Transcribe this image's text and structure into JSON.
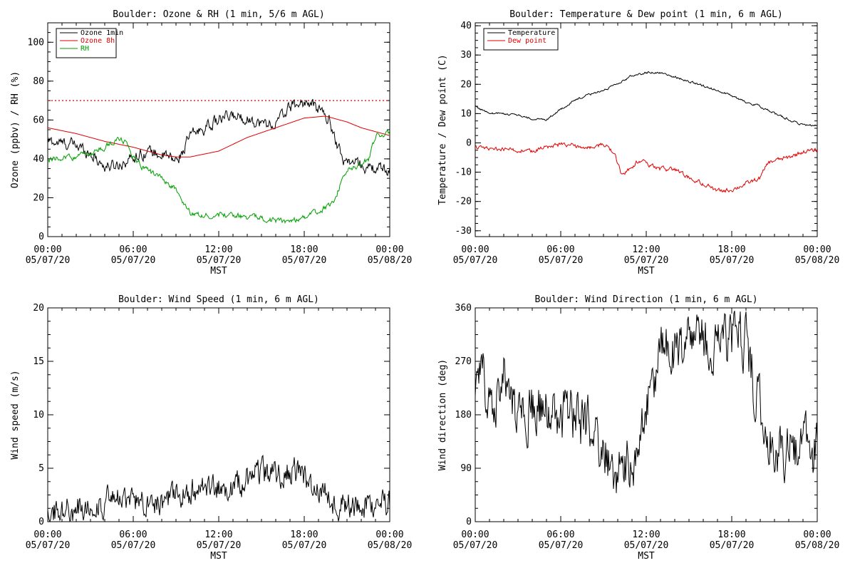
{
  "colors": {
    "black": "#000000",
    "red": "#e00000",
    "green": "#00a000",
    "background": "#ffffff"
  },
  "time_axis": {
    "ticks": [
      {
        "time": "00:00",
        "date": "05/07/20"
      },
      {
        "time": "06:00",
        "date": "05/07/20"
      },
      {
        "time": "12:00",
        "date": "05/07/20"
      },
      {
        "time": "18:00",
        "date": "05/07/20"
      },
      {
        "time": "00:00",
        "date": "05/08/20"
      }
    ],
    "label": "MST"
  },
  "chart_data": [
    {
      "type": "line",
      "title": "Boulder: Ozone & RH (1 min, 5/6 m AGL)",
      "xlabel": "MST",
      "ylabel": "Ozone (ppbv) / RH (%)",
      "xlim": [
        "05/07/20 00:00",
        "05/08/20 00:00"
      ],
      "ylim": [
        0,
        110
      ],
      "yticks": [
        0,
        20,
        40,
        60,
        80,
        100
      ],
      "legend_position": "top-left",
      "grid": false,
      "reference_line": {
        "y": 70,
        "color": "#e00000",
        "style": "dotted"
      },
      "series": [
        {
          "name": "Ozone 1min",
          "color": "#000000",
          "noise": 2.5,
          "values": [
            [
              "05/07/20 00:00",
              49
            ],
            [
              "05/07/20 01:00",
              48
            ],
            [
              "05/07/20 02:00",
              47
            ],
            [
              "05/07/20 03:00",
              43
            ],
            [
              "05/07/20 04:00",
              36
            ],
            [
              "05/07/20 05:00",
              37
            ],
            [
              "05/07/20 06:00",
              41
            ],
            [
              "05/07/20 07:00",
              44
            ],
            [
              "05/07/20 08:00",
              42
            ],
            [
              "05/07/20 09:00",
              39
            ],
            [
              "05/07/20 09:30",
              44
            ],
            [
              "05/07/20 10:00",
              52
            ],
            [
              "05/07/20 11:00",
              56
            ],
            [
              "05/07/20 12:00",
              60
            ],
            [
              "05/07/20 13:00",
              62
            ],
            [
              "05/07/20 14:00",
              61
            ],
            [
              "05/07/20 15:00",
              58
            ],
            [
              "05/07/20 16:00",
              58
            ],
            [
              "05/07/20 17:00",
              67
            ],
            [
              "05/07/20 18:00",
              69
            ],
            [
              "05/07/20 19:00",
              66
            ],
            [
              "05/07/20 19:45",
              60
            ],
            [
              "05/07/20 20:15",
              49
            ],
            [
              "05/07/20 20:40",
              40
            ],
            [
              "05/07/20 21:00",
              39
            ],
            [
              "05/07/20 22:00",
              37
            ],
            [
              "05/07/20 22:30",
              35
            ],
            [
              "05/07/20 23:00",
              35
            ],
            [
              "05/08/20 00:00",
              34
            ]
          ]
        },
        {
          "name": "Ozone 8h",
          "color": "#e00000",
          "noise": 0,
          "values": [
            [
              "05/07/20 00:00",
              56
            ],
            [
              "05/07/20 02:00",
              53
            ],
            [
              "05/07/20 04:00",
              49
            ],
            [
              "05/07/20 06:00",
              46
            ],
            [
              "05/07/20 08:00",
              42
            ],
            [
              "05/07/20 09:00",
              41
            ],
            [
              "05/07/20 10:00",
              41
            ],
            [
              "05/07/20 12:00",
              44
            ],
            [
              "05/07/20 14:00",
              51
            ],
            [
              "05/07/20 16:00",
              56
            ],
            [
              "05/07/20 18:00",
              61
            ],
            [
              "05/07/20 19:30",
              62
            ],
            [
              "05/07/20 21:00",
              59
            ],
            [
              "05/07/20 22:00",
              56
            ],
            [
              "05/07/20 23:00",
              54
            ],
            [
              "05/08/20 00:00",
              52
            ]
          ]
        },
        {
          "name": "RH",
          "color": "#00a000",
          "noise": 1.2,
          "values": [
            [
              "05/07/20 00:00",
              39
            ],
            [
              "05/07/20 01:00",
              41
            ],
            [
              "05/07/20 02:00",
              41
            ],
            [
              "05/07/20 03:00",
              43
            ],
            [
              "05/07/20 04:00",
              46
            ],
            [
              "05/07/20 05:00",
              50
            ],
            [
              "05/07/20 05:30",
              49
            ],
            [
              "05/07/20 06:00",
              40
            ],
            [
              "05/07/20 07:00",
              34
            ],
            [
              "05/07/20 08:00",
              30
            ],
            [
              "05/07/20 09:00",
              24
            ],
            [
              "05/07/20 10:00",
              12
            ],
            [
              "05/07/20 11:00",
              11
            ],
            [
              "05/07/20 12:00",
              11
            ],
            [
              "05/07/20 13:00",
              11
            ],
            [
              "05/07/20 14:00",
              10
            ],
            [
              "05/07/20 15:00",
              10
            ],
            [
              "05/07/20 16:00",
              8
            ],
            [
              "05/07/20 17:00",
              8
            ],
            [
              "05/07/20 18:00",
              10
            ],
            [
              "05/07/20 19:00",
              13
            ],
            [
              "05/07/20 20:00",
              17
            ],
            [
              "05/07/20 20:30",
              26
            ],
            [
              "05/07/20 21:00",
              34
            ],
            [
              "05/07/20 22:00",
              37
            ],
            [
              "05/07/20 22:30",
              40
            ],
            [
              "05/07/20 23:00",
              52
            ],
            [
              "05/08/20 00:00",
              53
            ]
          ]
        }
      ]
    },
    {
      "type": "line",
      "title": "Boulder: Temperature & Dew point (1 min, 6 m AGL)",
      "xlabel": "MST",
      "ylabel": "Temperature / Dew point (C)",
      "xlim": [
        "05/07/20 00:00",
        "05/08/20 00:00"
      ],
      "ylim": [
        -32,
        41
      ],
      "yticks": [
        -30,
        -20,
        -10,
        0,
        10,
        20,
        30,
        40
      ],
      "legend_position": "top-left",
      "grid": false,
      "series": [
        {
          "name": "Temperature",
          "color": "#000000",
          "noise": 0.3,
          "values": [
            [
              "05/07/20 00:00",
              12.5
            ],
            [
              "05/07/20 01:00",
              10
            ],
            [
              "05/07/20 02:00",
              10
            ],
            [
              "05/07/20 03:00",
              9.5
            ],
            [
              "05/07/20 04:00",
              8
            ],
            [
              "05/07/20 05:00",
              8
            ],
            [
              "05/07/20 06:00",
              11.5
            ],
            [
              "05/07/20 07:00",
              14.5
            ],
            [
              "05/07/20 08:00",
              16.5
            ],
            [
              "05/07/20 09:00",
              18
            ],
            [
              "05/07/20 10:00",
              20
            ],
            [
              "05/07/20 11:00",
              23
            ],
            [
              "05/07/20 12:00",
              24
            ],
            [
              "05/07/20 13:00",
              24
            ],
            [
              "05/07/20 14:00",
              22.5
            ],
            [
              "05/07/20 15:00",
              21
            ],
            [
              "05/07/20 16:00",
              19.5
            ],
            [
              "05/07/20 17:00",
              18
            ],
            [
              "05/07/20 18:00",
              16
            ],
            [
              "05/07/20 19:00",
              14
            ],
            [
              "05/07/20 20:00",
              12.5
            ],
            [
              "05/07/20 21:00",
              10
            ],
            [
              "05/07/20 22:00",
              8
            ],
            [
              "05/07/20 23:00",
              6
            ],
            [
              "05/08/20 00:00",
              6
            ]
          ]
        },
        {
          "name": "Dew point",
          "color": "#e00000",
          "noise": 0.6,
          "values": [
            [
              "05/07/20 00:00",
              -1.5
            ],
            [
              "05/07/20 01:00",
              -2
            ],
            [
              "05/07/20 02:00",
              -2
            ],
            [
              "05/07/20 03:00",
              -2.5
            ],
            [
              "05/07/20 04:00",
              -3
            ],
            [
              "05/07/20 05:00",
              -1.5
            ],
            [
              "05/07/20 06:00",
              -0.5
            ],
            [
              "05/07/20 07:00",
              -1
            ],
            [
              "05/07/20 08:00",
              -1.5
            ],
            [
              "05/07/20 09:00",
              -0.5
            ],
            [
              "05/07/20 09:45",
              -3
            ],
            [
              "05/07/20 10:15",
              -11
            ],
            [
              "05/07/20 11:00",
              -8
            ],
            [
              "05/07/20 11:30",
              -6
            ],
            [
              "05/07/20 12:00",
              -7
            ],
            [
              "05/07/20 13:00",
              -9
            ],
            [
              "05/07/20 14:00",
              -9
            ],
            [
              "05/07/20 15:00",
              -12
            ],
            [
              "05/07/20 16:00",
              -14
            ],
            [
              "05/07/20 17:00",
              -16.5
            ],
            [
              "05/07/20 18:00",
              -16
            ],
            [
              "05/07/20 19:00",
              -14
            ],
            [
              "05/07/20 20:00",
              -12
            ],
            [
              "05/07/20 20:30",
              -7
            ],
            [
              "05/07/20 21:00",
              -6
            ],
            [
              "05/07/20 22:00",
              -5
            ],
            [
              "05/07/20 23:00",
              -3
            ],
            [
              "05/08/20 00:00",
              -2.5
            ]
          ]
        }
      ]
    },
    {
      "type": "line",
      "title": "Boulder: Wind Speed (1 min, 6 m AGL)",
      "xlabel": "MST",
      "ylabel": "Wind speed (m/s)",
      "xlim": [
        "05/07/20 00:00",
        "05/08/20 00:00"
      ],
      "ylim": [
        0,
        20
      ],
      "yticks": [
        0,
        5,
        10,
        15,
        20
      ],
      "grid": false,
      "series": [
        {
          "name": "",
          "color": "#000000",
          "noise": 1.1,
          "floor": 0,
          "values": [
            [
              "05/07/20 00:00",
              1
            ],
            [
              "05/07/20 01:00",
              1
            ],
            [
              "05/07/20 02:00",
              1.2
            ],
            [
              "05/07/20 03:00",
              1.5
            ],
            [
              "05/07/20 04:00",
              1.8
            ],
            [
              "05/07/20 05:00",
              2
            ],
            [
              "05/07/20 06:00",
              1.8
            ],
            [
              "05/07/20 07:00",
              2.2
            ],
            [
              "05/07/20 08:00",
              2
            ],
            [
              "05/07/20 09:00",
              2.2
            ],
            [
              "05/07/20 10:00",
              2.8
            ],
            [
              "05/07/20 11:00",
              2.8
            ],
            [
              "05/07/20 12:00",
              3.2
            ],
            [
              "05/07/20 13:00",
              3.2
            ],
            [
              "05/07/20 14:00",
              4
            ],
            [
              "05/07/20 15:00",
              4.5
            ],
            [
              "05/07/20 16:00",
              4.5
            ],
            [
              "05/07/20 17:00",
              4.8
            ],
            [
              "05/07/20 18:00",
              4
            ],
            [
              "05/07/20 19:00",
              3
            ],
            [
              "05/07/20 20:00",
              2
            ],
            [
              "05/07/20 21:00",
              1.5
            ],
            [
              "05/07/20 22:00",
              1.5
            ],
            [
              "05/07/20 23:00",
              1.8
            ],
            [
              "05/08/20 00:00",
              1.5
            ]
          ]
        }
      ]
    },
    {
      "type": "line",
      "title": "Boulder: Wind Direction (1 min, 6 m AGL)",
      "xlabel": "MST",
      "ylabel": "Wind direction (deg)",
      "xlim": [
        "05/07/20 00:00",
        "05/08/20 00:00"
      ],
      "ylim": [
        0,
        360
      ],
      "yticks": [
        0,
        90,
        180,
        270,
        360
      ],
      "grid": false,
      "series": [
        {
          "name": "",
          "color": "#000000",
          "noise": 40,
          "floor": 0,
          "ceiling": 360,
          "values": [
            [
              "05/07/20 00:00",
              220
            ],
            [
              "05/07/20 00:30",
              250
            ],
            [
              "05/07/20 01:00",
              210
            ],
            [
              "05/07/20 02:00",
              240
            ],
            [
              "05/07/20 03:00",
              180
            ],
            [
              "05/07/20 04:00",
              200
            ],
            [
              "05/07/20 05:00",
              180
            ],
            [
              "05/07/20 06:00",
              170
            ],
            [
              "05/07/20 07:00",
              180
            ],
            [
              "05/07/20 08:00",
              150
            ],
            [
              "05/07/20 09:00",
              120
            ],
            [
              "05/07/20 10:00",
              80
            ],
            [
              "05/07/20 11:00",
              100
            ],
            [
              "05/07/20 12:00",
              180
            ],
            [
              "05/07/20 13:00",
              280
            ],
            [
              "05/07/20 14:00",
              290
            ],
            [
              "05/07/20 15:00",
              300
            ],
            [
              "05/07/20 16:00",
              300
            ],
            [
              "05/07/20 17:00",
              300
            ],
            [
              "05/07/20 18:00",
              310
            ],
            [
              "05/07/20 19:00",
              300
            ],
            [
              "05/07/20 20:00",
              180
            ],
            [
              "05/07/20 21:00",
              130
            ],
            [
              "05/07/20 22:00",
              120
            ],
            [
              "05/07/20 23:00",
              130
            ],
            [
              "05/08/20 00:00",
              110
            ]
          ]
        }
      ]
    }
  ]
}
